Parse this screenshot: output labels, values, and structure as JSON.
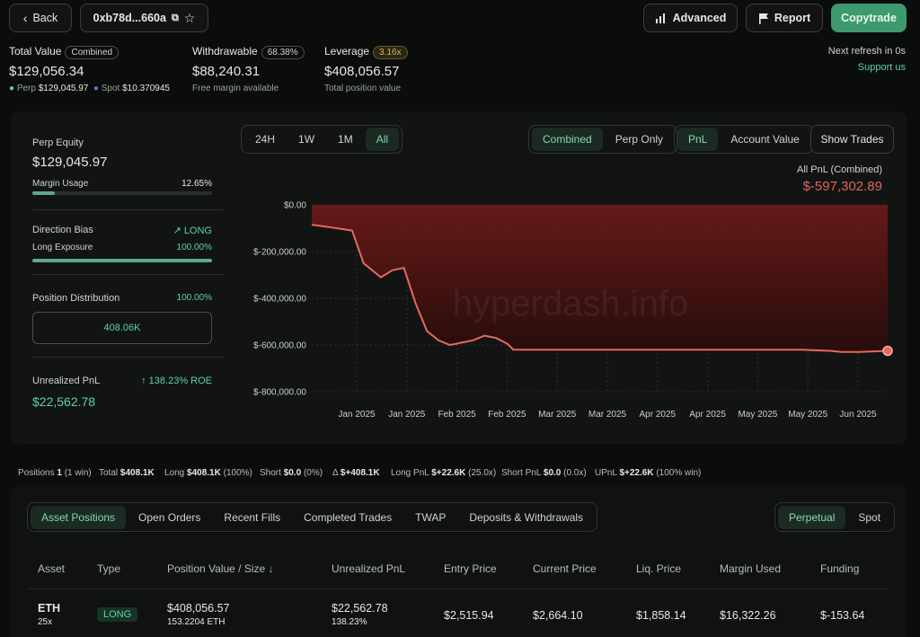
{
  "header": {
    "back_label": "Back",
    "address": "0xb78d...660a",
    "advanced_label": "Advanced",
    "report_label": "Report",
    "copytrade_label": "Copytrade"
  },
  "summary": {
    "total_value_label": "Total Value",
    "total_value_badge": "Combined",
    "total_value": "$129,056.34",
    "perp_label": "Perp",
    "perp_value": "$129,045.97",
    "spot_label": "Spot",
    "spot_value": "$10.370945",
    "withdrawable_label": "Withdrawable",
    "withdrawable_badge": "68.38%",
    "withdrawable_value": "$88,240.31",
    "withdrawable_sub": "Free margin available",
    "leverage_label": "Leverage",
    "leverage_badge": "3.16x",
    "leverage_value": "$408,056.57",
    "leverage_sub": "Total position value",
    "refresh_text": "Next refresh in 0s",
    "support_label": "Support us"
  },
  "left_panel": {
    "perp_equity_label": "Perp Equity",
    "perp_equity_value": "$129,045.97",
    "margin_usage_label": "Margin Usage",
    "margin_usage_value": "12.65%",
    "margin_usage_fraction": 0.1265,
    "direction_bias_label": "Direction Bias",
    "direction_bias_value": "LONG",
    "long_exposure_label": "Long Exposure",
    "long_exposure_value": "100.00%",
    "long_exposure_fraction": 1.0,
    "position_distribution_label": "Position Distribution",
    "position_distribution_value": "100.00%",
    "position_distribution_box": "408.06K",
    "unrealized_pnl_label": "Unrealized PnL",
    "unrealized_roe": "138.23% ROE",
    "unrealized_pnl_value": "$22,562.78"
  },
  "chart_controls": {
    "ranges": [
      "24H",
      "1W",
      "1M",
      "All"
    ],
    "range_active": "All",
    "scopes": [
      "Combined",
      "Perp Only"
    ],
    "scope_active": "Combined",
    "modes": [
      "PnL",
      "Account Value"
    ],
    "mode_active": "PnL",
    "show_trades_label": "Show Trades",
    "pnl_title": "All PnL (Combined)",
    "pnl_value": "$-597,302.89",
    "watermark": "hyperdash.info"
  },
  "chart_data": {
    "type": "area",
    "ylim": [
      -800000,
      0
    ],
    "y_ticks": [
      0,
      -200000,
      -400000,
      -600000,
      -800000
    ],
    "y_tick_labels": [
      "$0.00",
      "$-200,000.00",
      "$-400,000.00",
      "$-600,000.00",
      "$-800,000.00"
    ],
    "x_tick_labels": [
      "Jan 2025",
      "Jan 2025",
      "Feb 2025",
      "Feb 2025",
      "Mar 2025",
      "Mar 2025",
      "Apr 2025",
      "Apr 2025",
      "May 2025",
      "May 2025",
      "Jun 2025"
    ],
    "series": [
      {
        "x": [
          0,
          0.03,
          0.07,
          0.09,
          0.12,
          0.14,
          0.16,
          0.18,
          0.2,
          0.22,
          0.24,
          0.26,
          0.28,
          0.3,
          0.32,
          0.34,
          0.35,
          0.37,
          0.4,
          0.45,
          0.5,
          0.55,
          0.6,
          0.65,
          0.7,
          0.75,
          0.8,
          0.85,
          0.9,
          0.92,
          0.95,
          1.0
        ],
        "values": [
          -85000,
          -95000,
          -110000,
          -250000,
          -310000,
          -280000,
          -270000,
          -420000,
          -540000,
          -580000,
          -600000,
          -590000,
          -580000,
          -560000,
          -570000,
          -595000,
          -620000,
          -620000,
          -620000,
          -620000,
          -620000,
          -620000,
          -620000,
          -620000,
          -620000,
          -620000,
          -620000,
          -620000,
          -625000,
          -630000,
          -630000,
          -625000
        ]
      }
    ]
  },
  "stats_row": {
    "positions_label": "Positions",
    "positions_value": "1",
    "positions_sub": "(1 win)",
    "total_label": "Total",
    "total_value": "$408.1K",
    "long_label": "Long",
    "long_value": "$408.1K",
    "long_sub": "(100%)",
    "short_label": "Short",
    "short_value": "$0.0",
    "short_sub": "(0%)",
    "delta_label": "Δ",
    "delta_value": "$+408.1K",
    "longpnl_label": "Long PnL",
    "longpnl_value": "$+22.6K",
    "longpnl_sub": "(25.0x)",
    "shortpnl_label": "Short PnL",
    "shortpnl_value": "$0.0",
    "shortpnl_sub": "(0.0x)",
    "upnl_label": "UPnL",
    "upnl_value": "$+22.6K",
    "upnl_sub": "(100% win)"
  },
  "tabs": {
    "items": [
      "Asset Positions",
      "Open Orders",
      "Recent Fills",
      "Completed Trades",
      "TWAP",
      "Deposits & Withdrawals"
    ],
    "active": "Asset Positions",
    "market_items": [
      "Perpetual",
      "Spot"
    ],
    "market_active": "Perpetual"
  },
  "table": {
    "headers": [
      "Asset",
      "Type",
      "Position Value / Size",
      "Unrealized PnL",
      "Entry Price",
      "Current Price",
      "Liq. Price",
      "Margin Used",
      "Funding"
    ],
    "sort_indicator": "↓",
    "row": {
      "asset": "ETH",
      "leverage": "25x",
      "type": "LONG",
      "position_value": "$408,056.57",
      "position_size": "153.2204 ETH",
      "unrealized_pnl": "$22,562.78",
      "unrealized_pct": "138.23%",
      "entry_price": "$2,515.94",
      "current_price": "$2,664.10",
      "liq_price": "$1,858.14",
      "margin_used": "$16,322.26",
      "funding": "$-153.64"
    }
  }
}
